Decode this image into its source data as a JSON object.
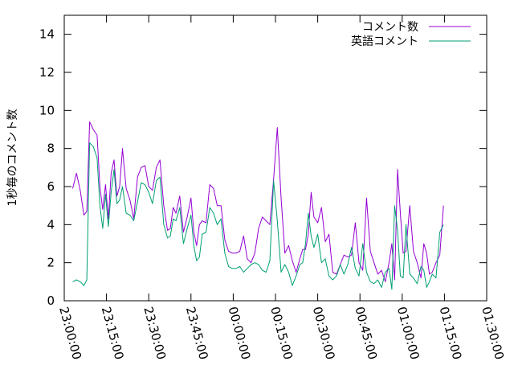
{
  "chart_data": {
    "type": "line",
    "title": "",
    "xlabel": "",
    "ylabel": "1秒毎のコメント数",
    "x_unit": "time (hh:mm:ss)",
    "xlim": [
      "23:00:00",
      "01:30:00"
    ],
    "ylim": [
      0,
      15
    ],
    "x_ticks": [
      "23:00:00",
      "23:15:00",
      "23:30:00",
      "23:45:00",
      "00:00:00",
      "00:15:00",
      "00:30:00",
      "00:45:00",
      "01:00:00",
      "01:15:00",
      "01:30:00"
    ],
    "y_ticks": [
      0,
      2,
      4,
      6,
      8,
      10,
      12,
      14
    ],
    "y_tick_labels": [
      "0",
      "2",
      "4",
      "6",
      "8",
      "10",
      "12",
      "14"
    ],
    "grid": false,
    "legend_position": "top-right",
    "x": [
      "23:03:00",
      "23:04:20",
      "23:05:40",
      "23:07:00",
      "23:08:00",
      "23:09:00",
      "23:10:20",
      "23:11:40",
      "23:12:40",
      "23:13:40",
      "23:14:40",
      "23:15:40",
      "23:16:40",
      "23:17:40",
      "23:18:40",
      "23:19:40",
      "23:20:40",
      "23:22:00",
      "23:23:20",
      "23:24:40",
      "23:26:00",
      "23:27:20",
      "23:28:40",
      "23:30:00",
      "23:31:20",
      "23:32:40",
      "23:34:00",
      "23:35:20",
      "23:36:40",
      "23:37:40",
      "23:38:40",
      "23:39:40",
      "23:41:00",
      "23:42:20",
      "23:43:40",
      "23:45:00",
      "23:46:00",
      "23:47:00",
      "23:48:00",
      "23:49:00",
      "23:50:20",
      "23:51:40",
      "23:53:00",
      "23:54:20",
      "23:55:40",
      "23:57:00",
      "23:58:20",
      "23:59:40",
      "00:01:00",
      "00:02:20",
      "00:03:40",
      "00:05:00",
      "00:06:20",
      "00:07:40",
      "00:09:00",
      "00:10:20",
      "00:11:40",
      "00:13:00",
      "00:14:20",
      "00:15:40",
      "00:17:00",
      "00:18:20",
      "00:19:40",
      "00:21:00",
      "00:22:20",
      "00:23:40",
      "00:24:40",
      "00:25:40",
      "00:26:40",
      "00:27:40",
      "00:28:40",
      "00:30:00",
      "00:31:20",
      "00:32:40",
      "00:34:00",
      "00:35:20",
      "00:36:40",
      "00:38:00",
      "00:39:20",
      "00:40:40",
      "00:42:00",
      "00:43:20",
      "00:44:40",
      "00:46:00",
      "00:47:20",
      "00:48:40",
      "00:50:00",
      "00:51:20",
      "00:52:40",
      "00:54:00",
      "00:55:20",
      "00:56:20",
      "00:57:20",
      "00:58:20",
      "00:59:20",
      "01:00:20",
      "01:01:20",
      "01:02:40",
      "01:04:00",
      "01:05:20",
      "01:06:40",
      "01:07:40",
      "01:08:40",
      "01:09:40",
      "01:10:40",
      "01:12:00",
      "01:13:20",
      "01:14:40"
    ],
    "series": [
      {
        "name": "コメント数",
        "color": "#9400d3",
        "values": [
          5.9,
          6.7,
          5.8,
          4.5,
          4.7,
          9.4,
          9.0,
          8.7,
          6.0,
          4.8,
          6.1,
          4.3,
          6.7,
          7.4,
          5.5,
          6.0,
          8.0,
          5.9,
          5.3,
          4.3,
          6.5,
          7.0,
          7.1,
          6.0,
          5.8,
          7.0,
          7.4,
          5.0,
          3.7,
          3.8,
          4.9,
          4.6,
          5.5,
          3.6,
          4.4,
          5.4,
          3.6,
          2.9,
          4.0,
          4.2,
          4.1,
          6.1,
          5.9,
          5.0,
          5.0,
          3.2,
          2.6,
          2.5,
          2.5,
          2.6,
          3.4,
          2.2,
          2.0,
          2.5,
          3.8,
          4.4,
          4.2,
          4.0,
          6.4,
          9.1,
          5.4,
          2.5,
          2.9,
          2.1,
          1.5,
          2.2,
          2.7,
          2.7,
          3.5,
          5.7,
          4.4,
          4.1,
          4.9,
          3.1,
          3.5,
          1.5,
          1.4,
          1.9,
          2.4,
          2.3,
          2.4,
          4.1,
          2.0,
          1.6,
          5.4,
          2.6,
          2.0,
          1.4,
          1.6,
          1.0,
          2.0,
          3.0,
          1.1,
          6.9,
          4.6,
          2.5,
          2.6,
          5.0,
          2.6,
          2.0,
          1.2,
          3.0,
          2.5,
          1.4,
          1.5,
          2.0,
          2.4,
          5.0
        ]
      },
      {
        "name": "英語コメント",
        "color": "#009e73",
        "values": [
          1.0,
          1.1,
          1.0,
          0.8,
          1.1,
          8.3,
          8.1,
          7.5,
          5.0,
          3.8,
          5.6,
          3.9,
          5.7,
          6.9,
          5.1,
          5.3,
          6.0,
          4.6,
          4.5,
          4.2,
          5.2,
          6.2,
          6.1,
          5.7,
          5.1,
          6.3,
          6.5,
          4.0,
          3.3,
          3.4,
          4.3,
          4.2,
          4.9,
          3.0,
          3.8,
          4.5,
          2.9,
          2.1,
          2.3,
          3.5,
          3.6,
          4.9,
          4.6,
          4.0,
          4.3,
          2.5,
          1.8,
          1.7,
          1.7,
          1.8,
          1.5,
          1.7,
          1.9,
          2.0,
          1.9,
          1.6,
          1.5,
          2.1,
          6.3,
          4.2,
          1.5,
          1.9,
          1.5,
          0.8,
          1.3,
          1.9,
          2.0,
          3.0,
          4.6,
          3.4,
          2.8,
          3.5,
          2.0,
          2.2,
          1.3,
          1.1,
          1.3,
          1.9,
          1.4,
          1.9,
          2.8,
          1.7,
          1.3,
          3.0,
          1.5,
          1.0,
          0.9,
          1.1,
          0.7,
          1.5,
          1.7,
          0.6,
          5.0,
          3.7,
          1.3,
          1.2,
          4.0,
          1.4,
          1.2,
          0.9,
          1.8,
          1.6,
          0.7,
          1.0,
          1.4,
          1.2,
          3.6,
          4.0
        ]
      }
    ]
  }
}
